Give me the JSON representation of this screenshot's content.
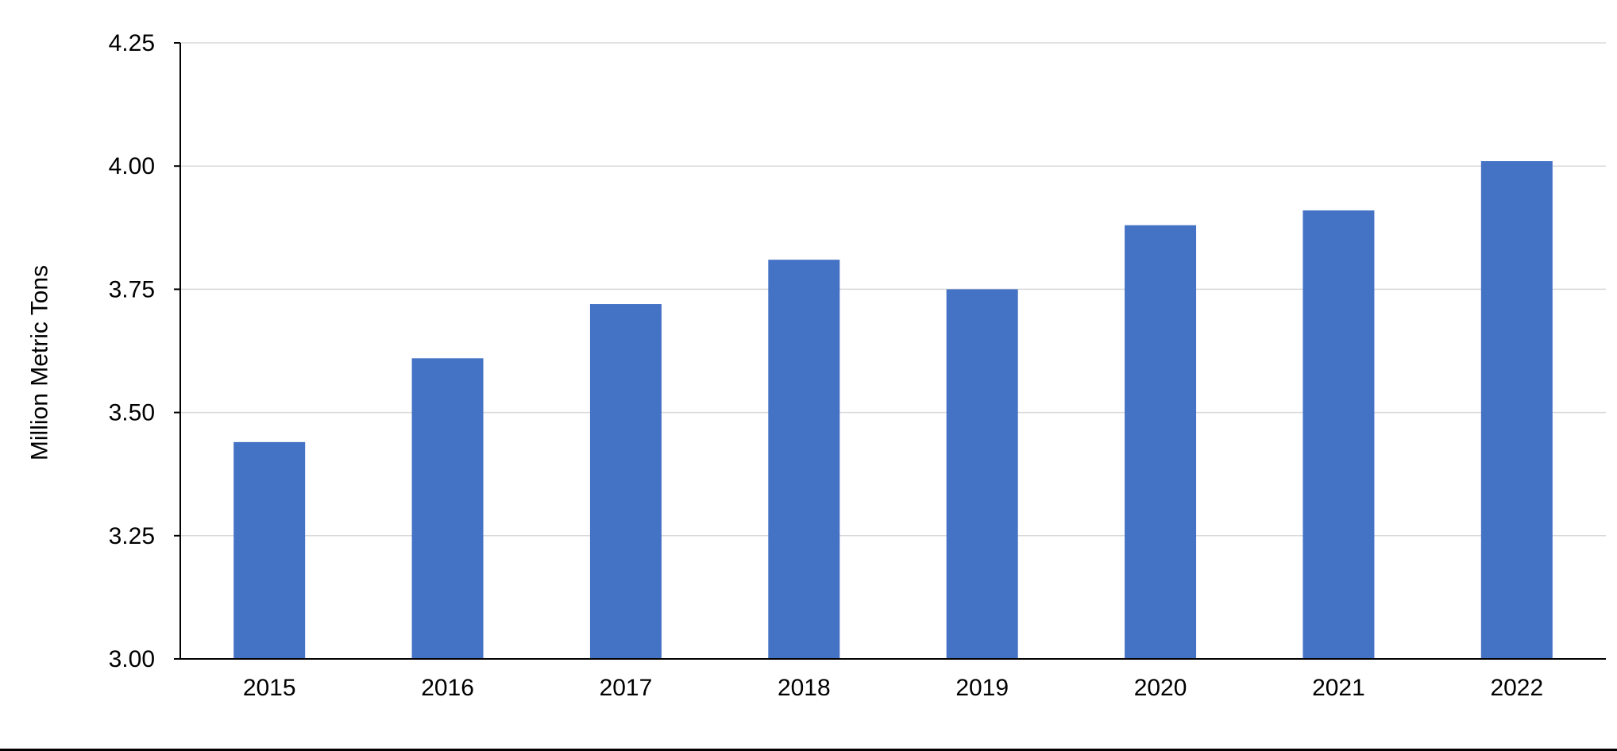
{
  "chart_data": {
    "type": "bar",
    "categories": [
      "2015",
      "2016",
      "2017",
      "2018",
      "2019",
      "2020",
      "2021",
      "2022"
    ],
    "values": [
      3.44,
      3.61,
      3.72,
      3.81,
      3.75,
      3.88,
      3.91,
      4.01
    ],
    "xlabel": "",
    "ylabel": "Million Metric Tons",
    "ylim": [
      3.0,
      4.25
    ],
    "yticks": [
      "3.00",
      "3.25",
      "3.50",
      "3.75",
      "4.00",
      "4.25"
    ],
    "ytick_values": [
      3.0,
      3.25,
      3.5,
      3.75,
      4.0,
      4.25
    ],
    "grid": true,
    "legend": "none",
    "colors": {
      "bar": "#4472C4",
      "grid": "#D9D9D9",
      "axis": "#000000"
    }
  }
}
